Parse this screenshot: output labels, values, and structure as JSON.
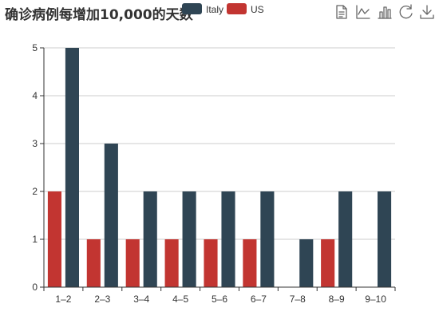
{
  "chart_data": {
    "type": "bar",
    "title": "确诊病例每增加10,000的天数",
    "categories": [
      "1–2",
      "2–3",
      "3–4",
      "4–5",
      "5–6",
      "6–7",
      "7–8",
      "8–9",
      "9–10"
    ],
    "series": [
      {
        "name": "US",
        "color": "#c23531",
        "values": [
          2,
          1,
          1,
          1,
          1,
          1,
          0,
          1,
          0
        ]
      },
      {
        "name": "Italy",
        "color": "#2f4554",
        "values": [
          5,
          3,
          2,
          2,
          2,
          2,
          1,
          2,
          2
        ]
      }
    ],
    "legend_order": [
      "Italy",
      "US"
    ],
    "legend_position": "top-right",
    "ylim": [
      0,
      5
    ],
    "yticks": [
      0,
      1,
      2,
      3,
      4,
      5
    ],
    "grid": true,
    "xlabel": "",
    "ylabel": ""
  },
  "toolbox": {
    "icons": [
      "data-view-icon",
      "line-chart-icon",
      "bar-chart-icon",
      "restore-icon",
      "download-icon"
    ]
  }
}
